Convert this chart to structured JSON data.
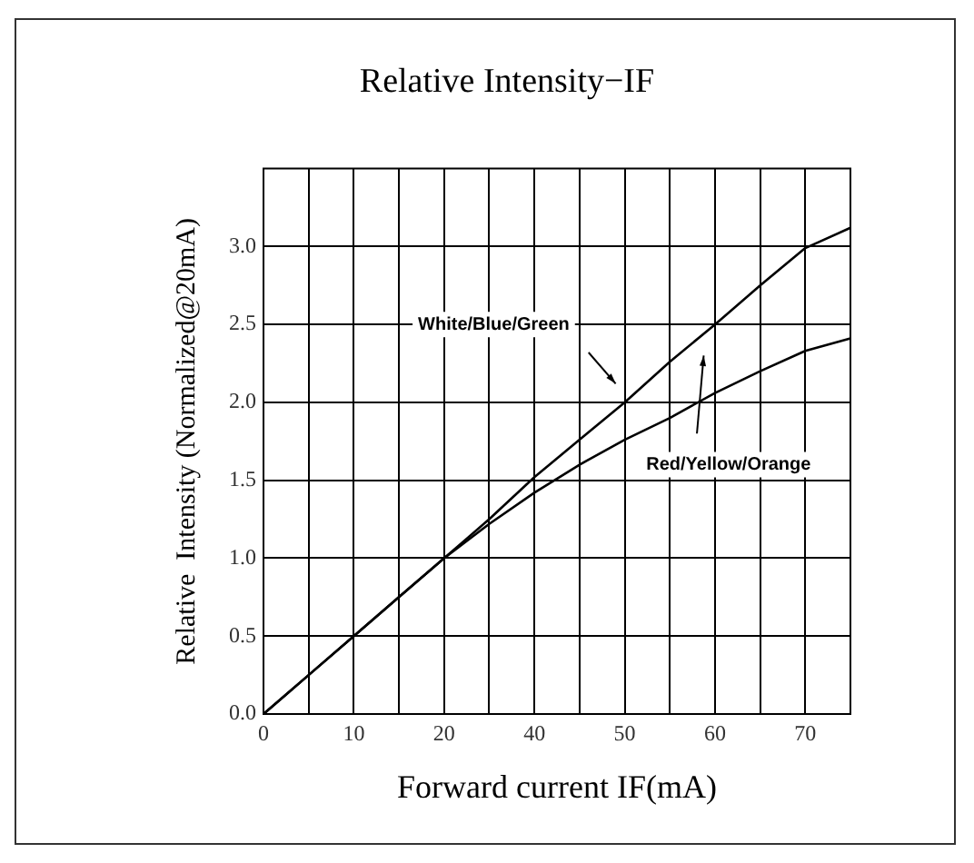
{
  "chart_data": {
    "type": "line",
    "title": "Relative Intensity−IF",
    "xlabel": "Forward current IF(mA)",
    "ylabel": "Relative  Intensity (Normalized@20mA)",
    "categories": [
      "0",
      null,
      "10",
      null,
      "20",
      null,
      "40",
      null,
      "50",
      null,
      "60",
      null,
      "70",
      null
    ],
    "series": [
      {
        "color": "#000000",
        "values": [
          0,
          0.25,
          0.5,
          0.75,
          1.0,
          1.25,
          1.52,
          1.76,
          2.0,
          2.26,
          2.5,
          2.75,
          2.99,
          3.12
        ]
      },
      {
        "color": "#000000",
        "values": [
          0,
          0.25,
          0.5,
          0.75,
          1.0,
          1.22,
          1.42,
          1.6,
          1.76,
          1.9,
          2.06,
          2.2,
          2.33,
          2.41
        ]
      }
    ],
    "ylim": [
      0,
      3.5
    ],
    "yticks": [
      {
        "value": 0,
        "label": "0.0"
      },
      0.5,
      {
        "value": 1,
        "label": "1.0"
      },
      1.5,
      {
        "value": 2,
        "label": "2.0"
      },
      2.5,
      {
        "value": 3,
        "label": "3.0"
      }
    ],
    "grid": true,
    "legend": false,
    "marker": "none",
    "line_style": "solid",
    "annotations": [
      "White/Blue/Green",
      "Red/Yellow/Orange"
    ]
  }
}
